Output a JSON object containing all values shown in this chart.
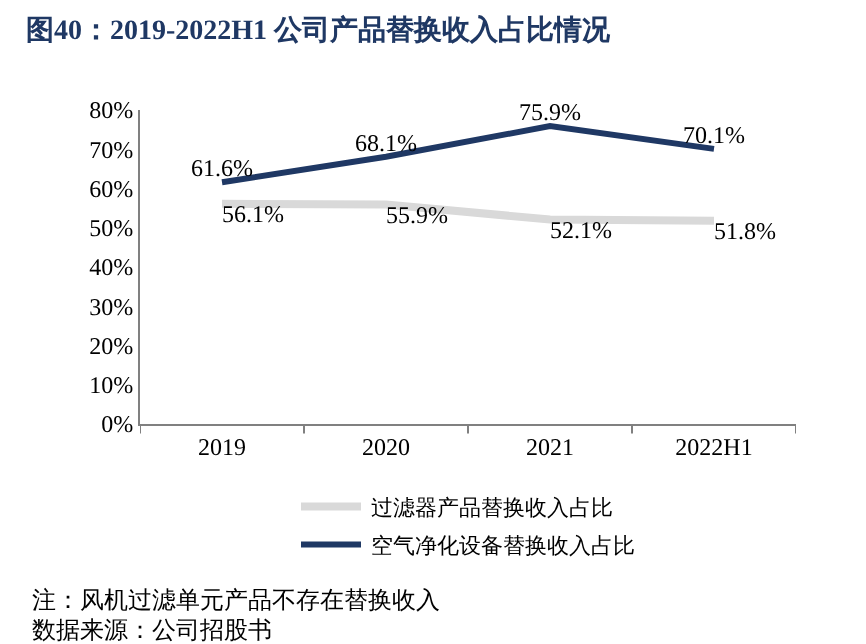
{
  "chart_data": {
    "type": "line",
    "title": "图40：2019-2022H1 公司产品替换收入占比情况",
    "categories": [
      "2019",
      "2020",
      "2021",
      "2022H1"
    ],
    "series": [
      {
        "name": "过滤器产品替换收入占比",
        "color": "#d9d9d9",
        "values": [
          56.1,
          55.9,
          52.1,
          51.8
        ],
        "value_labels": [
          "56.1%",
          "55.9%",
          "52.1%",
          "51.8%"
        ]
      },
      {
        "name": "空气净化设备替换收入占比",
        "color": "#1f3864",
        "values": [
          61.6,
          68.1,
          75.9,
          70.1
        ],
        "value_labels": [
          "61.6%",
          "68.1%",
          "75.9%",
          "70.1%"
        ]
      }
    ],
    "ylim": [
      0,
      80
    ],
    "yticks": [
      {
        "value": 0,
        "label": "0%"
      },
      {
        "value": 10,
        "label": "10%"
      },
      {
        "value": 20,
        "label": "20%"
      },
      {
        "value": 30,
        "label": "30%"
      },
      {
        "value": 40,
        "label": "40%"
      },
      {
        "value": 50,
        "label": "50%"
      },
      {
        "value": 60,
        "label": "60%"
      },
      {
        "value": 70,
        "label": "70%"
      },
      {
        "value": 80,
        "label": "80%"
      }
    ],
    "legend": "bottom",
    "marker": "none",
    "line_style": "solid",
    "annotations": [
      "注：风机过滤单元产品不存在替换收入",
      "数据来源：公司招股书"
    ]
  }
}
